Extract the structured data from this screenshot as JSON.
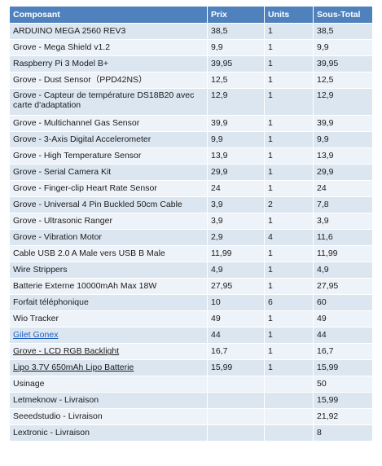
{
  "table": {
    "headers": {
      "name": "Composant",
      "prix": "Prix",
      "units": "Units",
      "subtotal": "Sous-Total"
    },
    "rows": [
      {
        "name": "ARDUINO MEGA 2560 REV3",
        "prix": "38,5",
        "units": "1",
        "subtotal": "38,5"
      },
      {
        "name": "Grove - Mega Shield v1.2",
        "prix": "9,9",
        "units": "1",
        "subtotal": "9,9"
      },
      {
        "name": "Raspberry Pi 3 Model B+",
        "prix": "39,95",
        "units": "1",
        "subtotal": "39,95"
      },
      {
        "name": "Grove - Dust Sensor（PPD42NS）",
        "prix": "12,5",
        "units": "1",
        "subtotal": "12,5"
      },
      {
        "name": "Grove - Capteur de température DS18B20 avec carte d'adaptation",
        "prix": "12,9",
        "units": "1",
        "subtotal": "12,9"
      },
      {
        "name": "Grove - Multichannel Gas Sensor",
        "prix": "39,9",
        "units": "1",
        "subtotal": "39,9"
      },
      {
        "name": "Grove - 3-Axis Digital Accelerometer",
        "prix": "9,9",
        "units": "1",
        "subtotal": "9,9"
      },
      {
        "name": "Grove - High Temperature Sensor",
        "prix": "13,9",
        "units": "1",
        "subtotal": "13,9"
      },
      {
        "name": "Grove - Serial Camera Kit",
        "prix": "29,9",
        "units": "1",
        "subtotal": "29,9"
      },
      {
        "name": "Grove - Finger-clip Heart Rate Sensor",
        "prix": "24",
        "units": "1",
        "subtotal": "24"
      },
      {
        "name": "Grove - Universal 4 Pin Buckled 50cm Cable",
        "prix": "3,9",
        "units": "2",
        "subtotal": "7,8"
      },
      {
        "name": "Grove - Ultrasonic Ranger",
        "prix": "3,9",
        "units": "1",
        "subtotal": "3,9"
      },
      {
        "name": "Grove - Vibration Motor",
        "prix": "2,9",
        "units": "4",
        "subtotal": "11,6"
      },
      {
        "name": "Cable USB 2.0 A Male vers USB B Male",
        "prix": "11,99",
        "units": "1",
        "subtotal": "11,99"
      },
      {
        "name": "Wire Strippers",
        "prix": "4,9",
        "units": "1",
        "subtotal": "4,9"
      },
      {
        "name": "Batterie Externe 10000mAh Max 18W",
        "prix": "27,95",
        "units": "1",
        "subtotal": "27,95"
      },
      {
        "name": "Forfait téléphonique",
        "prix": "10",
        "units": "6",
        "subtotal": "60"
      },
      {
        "name": "Wio Tracker",
        "prix": "49",
        "units": "1",
        "subtotal": "49"
      },
      {
        "name": "Gilet Gonex",
        "prix": "44",
        "units": "1",
        "subtotal": "44"
      },
      {
        "name": "Grove - LCD RGB Backlight",
        "prix": "16,7",
        "units": "1",
        "subtotal": "16,7"
      },
      {
        "name": "Lipo 3.7V 650mAh Lipo Batterie",
        "prix": "15,99",
        "units": "1",
        "subtotal": "15,99"
      },
      {
        "name": "Usinage",
        "prix": "",
        "units": "",
        "subtotal": "50"
      },
      {
        "name": "Letmeknow - Livraison",
        "prix": "",
        "units": "",
        "subtotal": "15,99"
      },
      {
        "name": "Seeedstudio - Livraison",
        "prix": "",
        "units": "",
        "subtotal": "21,92"
      },
      {
        "name": "Lextronic - Livraison",
        "prix": "",
        "units": "",
        "subtotal": "8"
      }
    ]
  },
  "colors": {
    "header_bg": "#4f81bd",
    "row_odd": "#dce6f1",
    "row_even": "#eef3f9",
    "link_blue": "#1f5fbf"
  }
}
